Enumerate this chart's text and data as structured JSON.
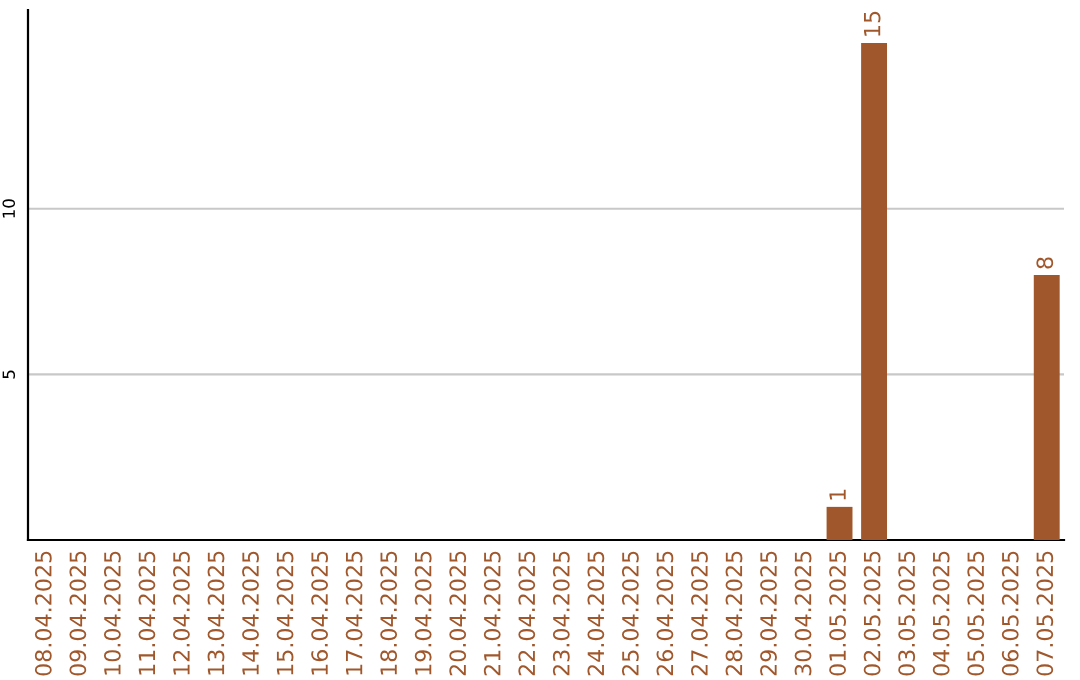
{
  "chart_data": {
    "type": "bar",
    "categories": [
      "08.04.2025",
      "09.04.2025",
      "10.04.2025",
      "11.04.2025",
      "12.04.2025",
      "13.04.2025",
      "14.04.2025",
      "15.04.2025",
      "16.04.2025",
      "17.04.2025",
      "18.04.2025",
      "19.04.2025",
      "20.04.2025",
      "21.04.2025",
      "22.04.2025",
      "23.04.2025",
      "24.04.2025",
      "25.04.2025",
      "26.04.2025",
      "27.04.2025",
      "28.04.2025",
      "29.04.2025",
      "30.04.2025",
      "01.05.2025",
      "02.05.2025",
      "03.05.2025",
      "04.05.2025",
      "05.05.2025",
      "06.05.2025",
      "07.05.2025"
    ],
    "values": [
      0,
      0,
      0,
      0,
      0,
      0,
      0,
      0,
      0,
      0,
      0,
      0,
      0,
      0,
      0,
      0,
      0,
      0,
      0,
      0,
      0,
      0,
      0,
      1,
      15,
      0,
      0,
      0,
      0,
      8
    ],
    "value_labels": [
      null,
      null,
      null,
      null,
      null,
      null,
      null,
      null,
      null,
      null,
      null,
      null,
      null,
      null,
      null,
      null,
      null,
      null,
      null,
      null,
      null,
      null,
      null,
      "1",
      "15",
      null,
      null,
      null,
      null,
      "8"
    ],
    "color": "#a0572b",
    "ylim": [
      0,
      16
    ],
    "yticks": [
      5,
      10
    ],
    "grid": "y"
  }
}
